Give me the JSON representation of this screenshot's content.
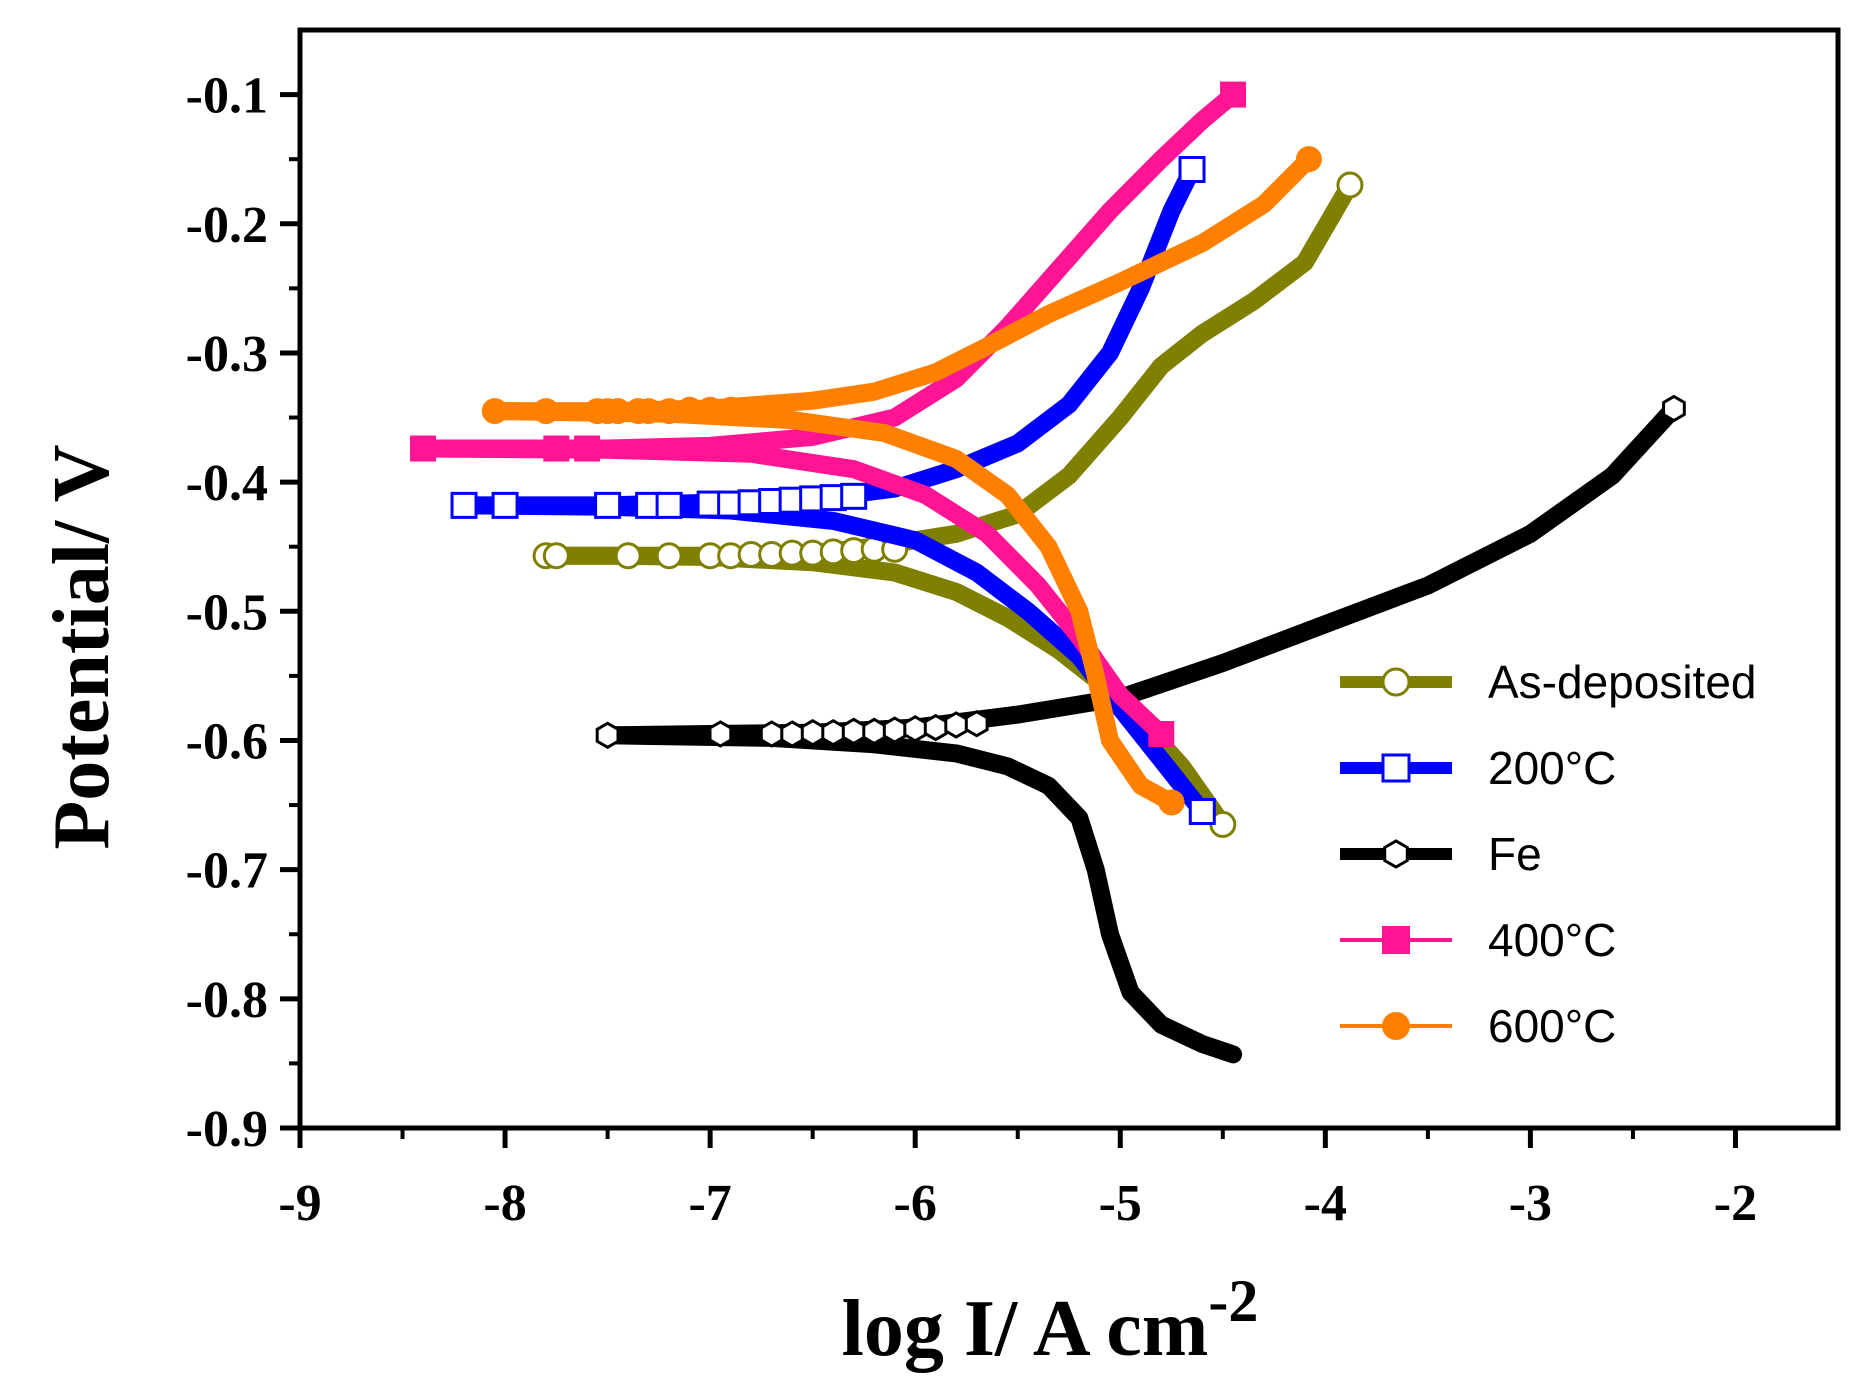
{
  "chart_data": {
    "type": "line",
    "title": "",
    "xlabel": "log I/ A cm",
    "xlabel_superscript": "-2",
    "ylabel": "Potential/ V",
    "xlim": [
      -9,
      -1.5
    ],
    "ylim": [
      -0.9,
      -0.05
    ],
    "xticks": [
      -9,
      -8,
      -7,
      -6,
      -5,
      -4,
      -3,
      -2
    ],
    "xtick_labels": [
      "-9",
      "-8",
      "-7",
      "-6",
      "-5",
      "-4",
      "-3",
      "-2"
    ],
    "yticks": [
      -0.9,
      -0.8,
      -0.7,
      -0.6,
      -0.5,
      -0.4,
      -0.3,
      -0.2,
      -0.1
    ],
    "ytick_labels": [
      "-0.9",
      "-0.8",
      "-0.7",
      "-0.6",
      "-0.5",
      "-0.4",
      "-0.3",
      "-0.2",
      "-0.1"
    ],
    "legend_position": "right-middle",
    "series": [
      {
        "name": "As-deposited",
        "color": "#808000",
        "marker": "circle-open",
        "cathodic": [
          [
            -4.5,
            -0.665
          ],
          [
            -4.7,
            -0.62
          ],
          [
            -4.9,
            -0.585
          ],
          [
            -5.1,
            -0.555
          ],
          [
            -5.3,
            -0.53
          ],
          [
            -5.55,
            -0.505
          ],
          [
            -5.8,
            -0.485
          ],
          [
            -6.1,
            -0.47
          ],
          [
            -6.5,
            -0.462
          ],
          [
            -7.0,
            -0.458
          ],
          [
            -7.5,
            -0.457
          ],
          [
            -7.8,
            -0.457
          ]
        ],
        "anodic": [
          [
            -7.8,
            -0.457
          ],
          [
            -7.0,
            -0.457
          ],
          [
            -6.5,
            -0.455
          ],
          [
            -6.2,
            -0.45
          ],
          [
            -5.8,
            -0.44
          ],
          [
            -5.5,
            -0.425
          ],
          [
            -5.25,
            -0.395
          ],
          [
            -5.0,
            -0.35
          ],
          [
            -4.8,
            -0.31
          ],
          [
            -4.6,
            -0.285
          ],
          [
            -4.35,
            -0.26
          ],
          [
            -4.1,
            -0.23
          ],
          [
            -3.88,
            -0.17
          ]
        ],
        "markers": [
          [
            -7.8,
            -0.457
          ],
          [
            -7.75,
            -0.457
          ],
          [
            -7.4,
            -0.457
          ],
          [
            -7.2,
            -0.457
          ],
          [
            -7.0,
            -0.457
          ],
          [
            -6.9,
            -0.457
          ],
          [
            -6.8,
            -0.456
          ],
          [
            -6.7,
            -0.456
          ],
          [
            -6.6,
            -0.455
          ],
          [
            -6.5,
            -0.455
          ],
          [
            -6.4,
            -0.454
          ],
          [
            -6.3,
            -0.453
          ],
          [
            -6.2,
            -0.452
          ],
          [
            -6.1,
            -0.452
          ],
          [
            -3.88,
            -0.17
          ],
          [
            -4.5,
            -0.665
          ]
        ]
      },
      {
        "name": "200°C",
        "color": "#0000ff",
        "marker": "square-open",
        "cathodic": [
          [
            -4.6,
            -0.655
          ],
          [
            -4.8,
            -0.615
          ],
          [
            -5.0,
            -0.575
          ],
          [
            -5.2,
            -0.535
          ],
          [
            -5.45,
            -0.5
          ],
          [
            -5.7,
            -0.47
          ],
          [
            -6.0,
            -0.445
          ],
          [
            -6.4,
            -0.43
          ],
          [
            -6.9,
            -0.422
          ],
          [
            -7.5,
            -0.419
          ],
          [
            -8.15,
            -0.418
          ]
        ],
        "anodic": [
          [
            -8.15,
            -0.418
          ],
          [
            -7.5,
            -0.418
          ],
          [
            -7.0,
            -0.416
          ],
          [
            -6.5,
            -0.413
          ],
          [
            -6.1,
            -0.405
          ],
          [
            -5.8,
            -0.39
          ],
          [
            -5.5,
            -0.37
          ],
          [
            -5.25,
            -0.34
          ],
          [
            -5.05,
            -0.3
          ],
          [
            -4.9,
            -0.25
          ],
          [
            -4.75,
            -0.19
          ],
          [
            -4.65,
            -0.158
          ]
        ],
        "markers": [
          [
            -8.2,
            -0.418
          ],
          [
            -8.0,
            -0.418
          ],
          [
            -7.5,
            -0.418
          ],
          [
            -7.3,
            -0.418
          ],
          [
            -7.2,
            -0.418
          ],
          [
            -7.0,
            -0.417
          ],
          [
            -6.9,
            -0.417
          ],
          [
            -6.8,
            -0.416
          ],
          [
            -6.7,
            -0.415
          ],
          [
            -6.6,
            -0.414
          ],
          [
            -6.5,
            -0.413
          ],
          [
            -6.4,
            -0.412
          ],
          [
            -6.3,
            -0.411
          ],
          [
            -4.65,
            -0.158
          ],
          [
            -4.6,
            -0.655
          ]
        ]
      },
      {
        "name": "Fe",
        "color": "#000000",
        "marker": "hexagon-open",
        "cathodic": [
          [
            -4.45,
            -0.843
          ],
          [
            -4.6,
            -0.835
          ],
          [
            -4.8,
            -0.82
          ],
          [
            -4.95,
            -0.795
          ],
          [
            -5.05,
            -0.75
          ],
          [
            -5.12,
            -0.7
          ],
          [
            -5.2,
            -0.66
          ],
          [
            -5.35,
            -0.635
          ],
          [
            -5.55,
            -0.62
          ],
          [
            -5.8,
            -0.61
          ],
          [
            -6.2,
            -0.603
          ],
          [
            -6.7,
            -0.598
          ],
          [
            -7.5,
            -0.596
          ]
        ],
        "anodic": [
          [
            -7.5,
            -0.596
          ],
          [
            -7.0,
            -0.595
          ],
          [
            -6.5,
            -0.594
          ],
          [
            -6.0,
            -0.59
          ],
          [
            -5.5,
            -0.58
          ],
          [
            -5.0,
            -0.567
          ],
          [
            -4.5,
            -0.54
          ],
          [
            -4.0,
            -0.51
          ],
          [
            -3.5,
            -0.48
          ],
          [
            -3.0,
            -0.44
          ],
          [
            -2.6,
            -0.395
          ],
          [
            -2.3,
            -0.343
          ]
        ],
        "markers": [
          [
            -7.5,
            -0.596
          ],
          [
            -6.95,
            -0.595
          ],
          [
            -6.7,
            -0.595
          ],
          [
            -6.6,
            -0.595
          ],
          [
            -6.5,
            -0.594
          ],
          [
            -6.4,
            -0.594
          ],
          [
            -6.3,
            -0.593
          ],
          [
            -6.2,
            -0.593
          ],
          [
            -6.1,
            -0.592
          ],
          [
            -6.0,
            -0.591
          ],
          [
            -5.9,
            -0.59
          ],
          [
            -5.8,
            -0.588
          ],
          [
            -5.7,
            -0.587
          ],
          [
            -2.3,
            -0.343
          ]
        ]
      },
      {
        "name": "400°C",
        "color": "#ff1493",
        "marker": "square-filled",
        "cathodic": [
          [
            -4.8,
            -0.595
          ],
          [
            -5.0,
            -0.565
          ],
          [
            -5.2,
            -0.52
          ],
          [
            -5.4,
            -0.48
          ],
          [
            -5.65,
            -0.44
          ],
          [
            -5.95,
            -0.41
          ],
          [
            -6.3,
            -0.39
          ],
          [
            -6.8,
            -0.378
          ],
          [
            -7.5,
            -0.375
          ],
          [
            -8.4,
            -0.374
          ]
        ],
        "anodic": [
          [
            -8.4,
            -0.374
          ],
          [
            -7.5,
            -0.374
          ],
          [
            -7.0,
            -0.372
          ],
          [
            -6.5,
            -0.365
          ],
          [
            -6.1,
            -0.35
          ],
          [
            -5.8,
            -0.32
          ],
          [
            -5.55,
            -0.28
          ],
          [
            -5.3,
            -0.235
          ],
          [
            -5.05,
            -0.19
          ],
          [
            -4.8,
            -0.15
          ],
          [
            -4.6,
            -0.12
          ],
          [
            -4.45,
            -0.1
          ]
        ],
        "markers": [
          [
            -8.4,
            -0.374
          ],
          [
            -7.75,
            -0.374
          ],
          [
            -7.6,
            -0.374
          ],
          [
            -4.45,
            -0.1
          ],
          [
            -4.8,
            -0.595
          ]
        ]
      },
      {
        "name": "600°C",
        "color": "#ff8000",
        "marker": "circle-filled",
        "cathodic": [
          [
            -4.75,
            -0.648
          ],
          [
            -4.9,
            -0.635
          ],
          [
            -5.05,
            -0.6
          ],
          [
            -5.12,
            -0.55
          ],
          [
            -5.2,
            -0.5
          ],
          [
            -5.35,
            -0.45
          ],
          [
            -5.55,
            -0.41
          ],
          [
            -5.8,
            -0.382
          ],
          [
            -6.15,
            -0.362
          ],
          [
            -6.6,
            -0.352
          ],
          [
            -7.2,
            -0.347
          ],
          [
            -8.05,
            -0.345
          ]
        ],
        "anodic": [
          [
            -8.05,
            -0.345
          ],
          [
            -7.5,
            -0.345
          ],
          [
            -7.0,
            -0.343
          ],
          [
            -6.5,
            -0.337
          ],
          [
            -6.2,
            -0.33
          ],
          [
            -5.9,
            -0.315
          ],
          [
            -5.65,
            -0.295
          ],
          [
            -5.35,
            -0.27
          ],
          [
            -5.0,
            -0.245
          ],
          [
            -4.6,
            -0.215
          ],
          [
            -4.3,
            -0.185
          ],
          [
            -4.08,
            -0.15
          ]
        ],
        "markers": [
          [
            -8.05,
            -0.345
          ],
          [
            -7.8,
            -0.345
          ],
          [
            -7.55,
            -0.345
          ],
          [
            -7.5,
            -0.345
          ],
          [
            -7.45,
            -0.345
          ],
          [
            -7.35,
            -0.345
          ],
          [
            -7.3,
            -0.345
          ],
          [
            -7.2,
            -0.345
          ],
          [
            -7.1,
            -0.344
          ],
          [
            -7.0,
            -0.344
          ],
          [
            -6.9,
            -0.344
          ],
          [
            -4.08,
            -0.15
          ],
          [
            -4.75,
            -0.648
          ]
        ]
      }
    ]
  }
}
